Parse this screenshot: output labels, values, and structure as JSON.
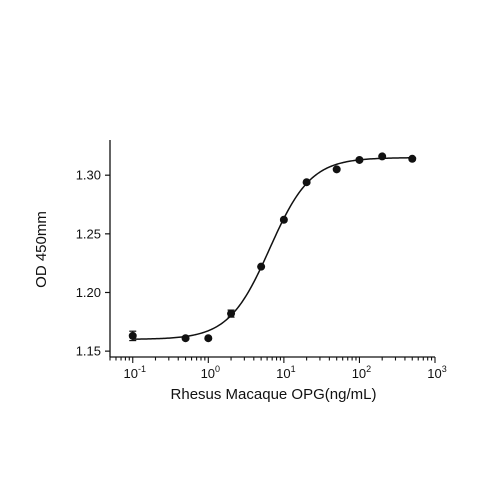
{
  "chart_data": {
    "type": "scatter",
    "title": "",
    "xlabel": "Rhesus Macaque OPG(ng/mL)",
    "ylabel": "OD 450mm",
    "x_scale": "log",
    "xlim": [
      0.05,
      1000
    ],
    "ylim": [
      1.145,
      1.33
    ],
    "x_ticks": [
      {
        "value": 0.1,
        "base": "10",
        "exp": "-1"
      },
      {
        "value": 1,
        "base": "10",
        "exp": "0"
      },
      {
        "value": 10,
        "base": "10",
        "exp": "1"
      },
      {
        "value": 100,
        "base": "10",
        "exp": "2"
      },
      {
        "value": 1000,
        "base": "10",
        "exp": "3"
      }
    ],
    "y_ticks": [
      {
        "value": 1.15,
        "label": "1.15"
      },
      {
        "value": 1.2,
        "label": "1.20"
      },
      {
        "value": 1.25,
        "label": "1.25"
      },
      {
        "value": 1.3,
        "label": "1.30"
      }
    ],
    "grid": false,
    "legend": "none",
    "series": [
      {
        "x": [
          0.1,
          0.5,
          1,
          2,
          5,
          10,
          20,
          50,
          100,
          200,
          500
        ],
        "y": [
          1.163,
          1.161,
          1.161,
          1.182,
          1.222,
          1.262,
          1.294,
          1.305,
          1.313,
          1.316,
          1.314
        ],
        "error": [
          0.004,
          0.001,
          0.001,
          0.003,
          0.001,
          0.001,
          0.001,
          0.001,
          0.001,
          0.001,
          0.001
        ],
        "fit": {
          "model": "4PL",
          "bottom": 1.16,
          "top": 1.315,
          "ec50": 6.5,
          "hill": 1.6
        }
      }
    ],
    "color": "#111111"
  }
}
